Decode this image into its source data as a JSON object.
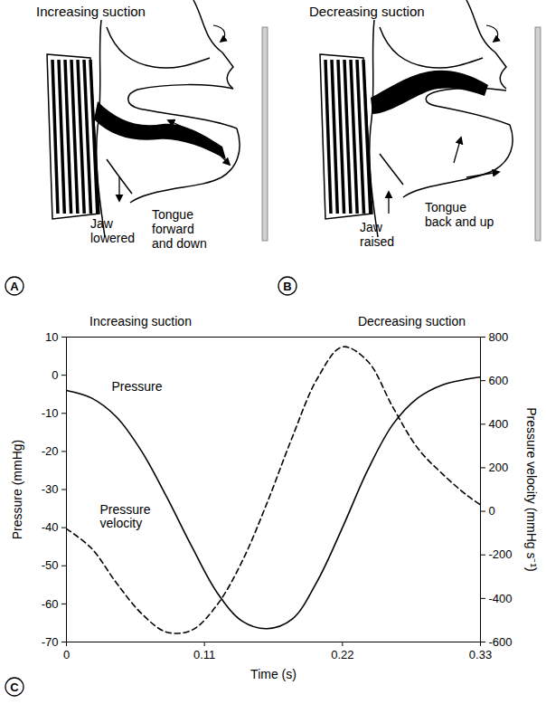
{
  "diagrams": [
    {
      "panel": "A",
      "title": "Increasing suction",
      "labels": [
        "Jaw lowered",
        "Tongue forward and down"
      ]
    },
    {
      "panel": "B",
      "title": "Decreasing suction",
      "labels": [
        "Jaw raised",
        "Tongue back and up"
      ]
    }
  ],
  "chart_data": {
    "type": "line",
    "panel": "C",
    "annotations": [
      "Increasing suction",
      "Decreasing suction"
    ],
    "xlabel": "Time (s)",
    "ylabel": "Pressure (mmHg)",
    "y2label": "Pressure velocity (mmHg s⁻¹)",
    "x": [
      0,
      0.02,
      0.04,
      0.06,
      0.08,
      0.1,
      0.12,
      0.14,
      0.16,
      0.18,
      0.2,
      0.22,
      0.24,
      0.26,
      0.28,
      0.3,
      0.32,
      0.33
    ],
    "xlim": [
      0,
      0.33
    ],
    "xticks": [
      0,
      0.11,
      0.22,
      0.33
    ],
    "ylim": [
      -70,
      10
    ],
    "yticks": [
      -70,
      -60,
      -50,
      -40,
      -30,
      -20,
      -10,
      0,
      10
    ],
    "y2lim": [
      -600,
      800
    ],
    "y2ticks": [
      -600,
      -400,
      -200,
      0,
      200,
      400,
      600,
      800
    ],
    "series": [
      {
        "name": "Pressure",
        "color": "#000000",
        "line_style": "solid",
        "values": [
          -4,
          -6,
          -11,
          -20,
          -32,
          -45,
          -57,
          -64.5,
          -66.5,
          -64,
          -54,
          -40,
          -25,
          -13,
          -6,
          -2.5,
          -1,
          -0.5
        ]
      },
      {
        "name": "Pressure velocity",
        "color": "#000000",
        "line_style": "dashed",
        "axis": "y2",
        "values": [
          -80,
          -170,
          -330,
          -470,
          -555,
          -545,
          -430,
          -230,
          40,
          340,
          610,
          755,
          690,
          480,
          290,
          170,
          70,
          30
        ]
      }
    ]
  }
}
